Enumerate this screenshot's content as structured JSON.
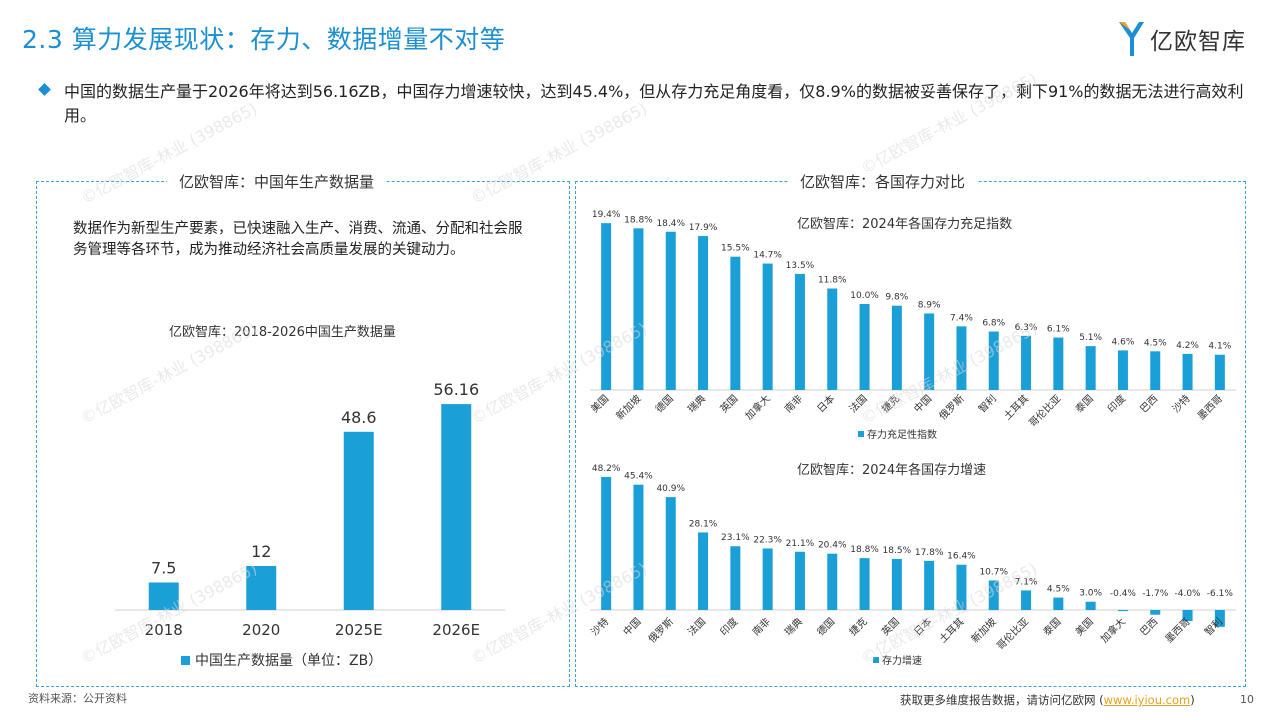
{
  "header": {
    "title": "2.3 算力发展现状：存力、数据增量不对等",
    "logo_text": "亿欧智库",
    "accent": "#1a8fd3"
  },
  "bullet": {
    "text": "中国的数据生产量于2026年将达到56.16ZB，中国存力增速较快，达到45.4%，但从存力充足角度看，仅8.9%的数据被妥善保存了，剩下91%的数据无法进行高效利用。"
  },
  "left_panel": {
    "title": "亿欧智库：中国年生产数据量",
    "description": "数据作为新型生产要素，已快速融入生产、消费、流通、分配和社会服务管理等各环节，成为推动经济社会高质量发展的关键动力。"
  },
  "right_panel": {
    "title": "亿欧智库：各国存力对比"
  },
  "watermark": "©亿欧智库-林业 (398865)",
  "chart_data": [
    {
      "type": "bar",
      "title": "亿欧智库：2018-2026中国生产数据量",
      "categories": [
        "2018",
        "2020",
        "2025E",
        "2026E"
      ],
      "values": [
        7.5,
        12,
        48.6,
        56.16
      ],
      "value_labels": [
        "7.5",
        "12",
        "48.6",
        "56.16"
      ],
      "series": [
        {
          "name": "中国生产数据量（单位：ZB）",
          "values": [
            7.5,
            12,
            48.6,
            56.16
          ]
        }
      ],
      "ylim": [
        0,
        60
      ],
      "legend": "bottom",
      "grid": false,
      "color": "#1a9fd6"
    },
    {
      "type": "bar",
      "title": "亿欧智库：2024年各国存力充足指数",
      "categories": [
        "美国",
        "新加坡",
        "德国",
        "瑞典",
        "英国",
        "加拿大",
        "南非",
        "日本",
        "法国",
        "捷克",
        "中国",
        "俄罗斯",
        "智利",
        "土耳其",
        "哥伦比亚",
        "泰国",
        "印度",
        "巴西",
        "沙特",
        "墨西哥"
      ],
      "values": [
        19.4,
        18.8,
        18.4,
        17.9,
        15.5,
        14.7,
        13.5,
        11.8,
        10.0,
        9.8,
        8.9,
        7.4,
        6.8,
        6.3,
        6.1,
        5.1,
        4.6,
        4.5,
        4.2,
        4.1
      ],
      "value_labels": [
        "19.4%",
        "18.8%",
        "18.4%",
        "17.9%",
        "15.5%",
        "14.7%",
        "13.5%",
        "11.8%",
        "10.0%",
        "9.8%",
        "8.9%",
        "7.4%",
        "6.8%",
        "6.3%",
        "6.1%",
        "5.1%",
        "4.6%",
        "4.5%",
        "4.2%",
        "4.1%"
      ],
      "series": [
        {
          "name": "存力充足性指数",
          "values": [
            19.4,
            18.8,
            18.4,
            17.9,
            15.5,
            14.7,
            13.5,
            11.8,
            10.0,
            9.8,
            8.9,
            7.4,
            6.8,
            6.3,
            6.1,
            5.1,
            4.6,
            4.5,
            4.2,
            4.1
          ]
        }
      ],
      "ylim": [
        0,
        20
      ],
      "legend": "bottom",
      "grid": false,
      "color": "#1a9fd6"
    },
    {
      "type": "bar",
      "title": "亿欧智库：2024年各国存力增速",
      "categories": [
        "沙特",
        "中国",
        "俄罗斯",
        "法国",
        "印度",
        "南非",
        "瑞典",
        "德国",
        "捷克",
        "英国",
        "日本",
        "土耳其",
        "新加坡",
        "哥伦比亚",
        "泰国",
        "美国",
        "加拿大",
        "巴西",
        "墨西哥",
        "智利"
      ],
      "values": [
        48.2,
        45.4,
        40.9,
        28.1,
        23.1,
        22.3,
        21.1,
        20.4,
        18.8,
        18.5,
        17.8,
        16.4,
        10.7,
        7.1,
        4.5,
        3.0,
        -0.4,
        -1.7,
        -4.0,
        -6.1
      ],
      "value_labels": [
        "48.2%",
        "45.4%",
        "40.9%",
        "28.1%",
        "23.1%",
        "22.3%",
        "21.1%",
        "20.4%",
        "18.8%",
        "18.5%",
        "17.8%",
        "16.4%",
        "10.7%",
        "7.1%",
        "4.5%",
        "3.0%",
        "-0.4%",
        "-1.7%",
        "-4.0%",
        "-6.1%"
      ],
      "series": [
        {
          "name": "存力增速",
          "values": [
            48.2,
            45.4,
            40.9,
            28.1,
            23.1,
            22.3,
            21.1,
            20.4,
            18.8,
            18.5,
            17.8,
            16.4,
            10.7,
            7.1,
            4.5,
            3.0,
            -0.4,
            -1.7,
            -4.0,
            -6.1
          ]
        }
      ],
      "ylim": [
        -7,
        50
      ],
      "legend": "bottom",
      "grid": false,
      "color": "#1a9fd6"
    }
  ],
  "footer": {
    "source": "资料来源：公开资料",
    "text": "获取更多维度报告数据，请访问亿欧网 (",
    "link": "www.iyiou.com",
    "text_end": ")",
    "page": "10"
  }
}
